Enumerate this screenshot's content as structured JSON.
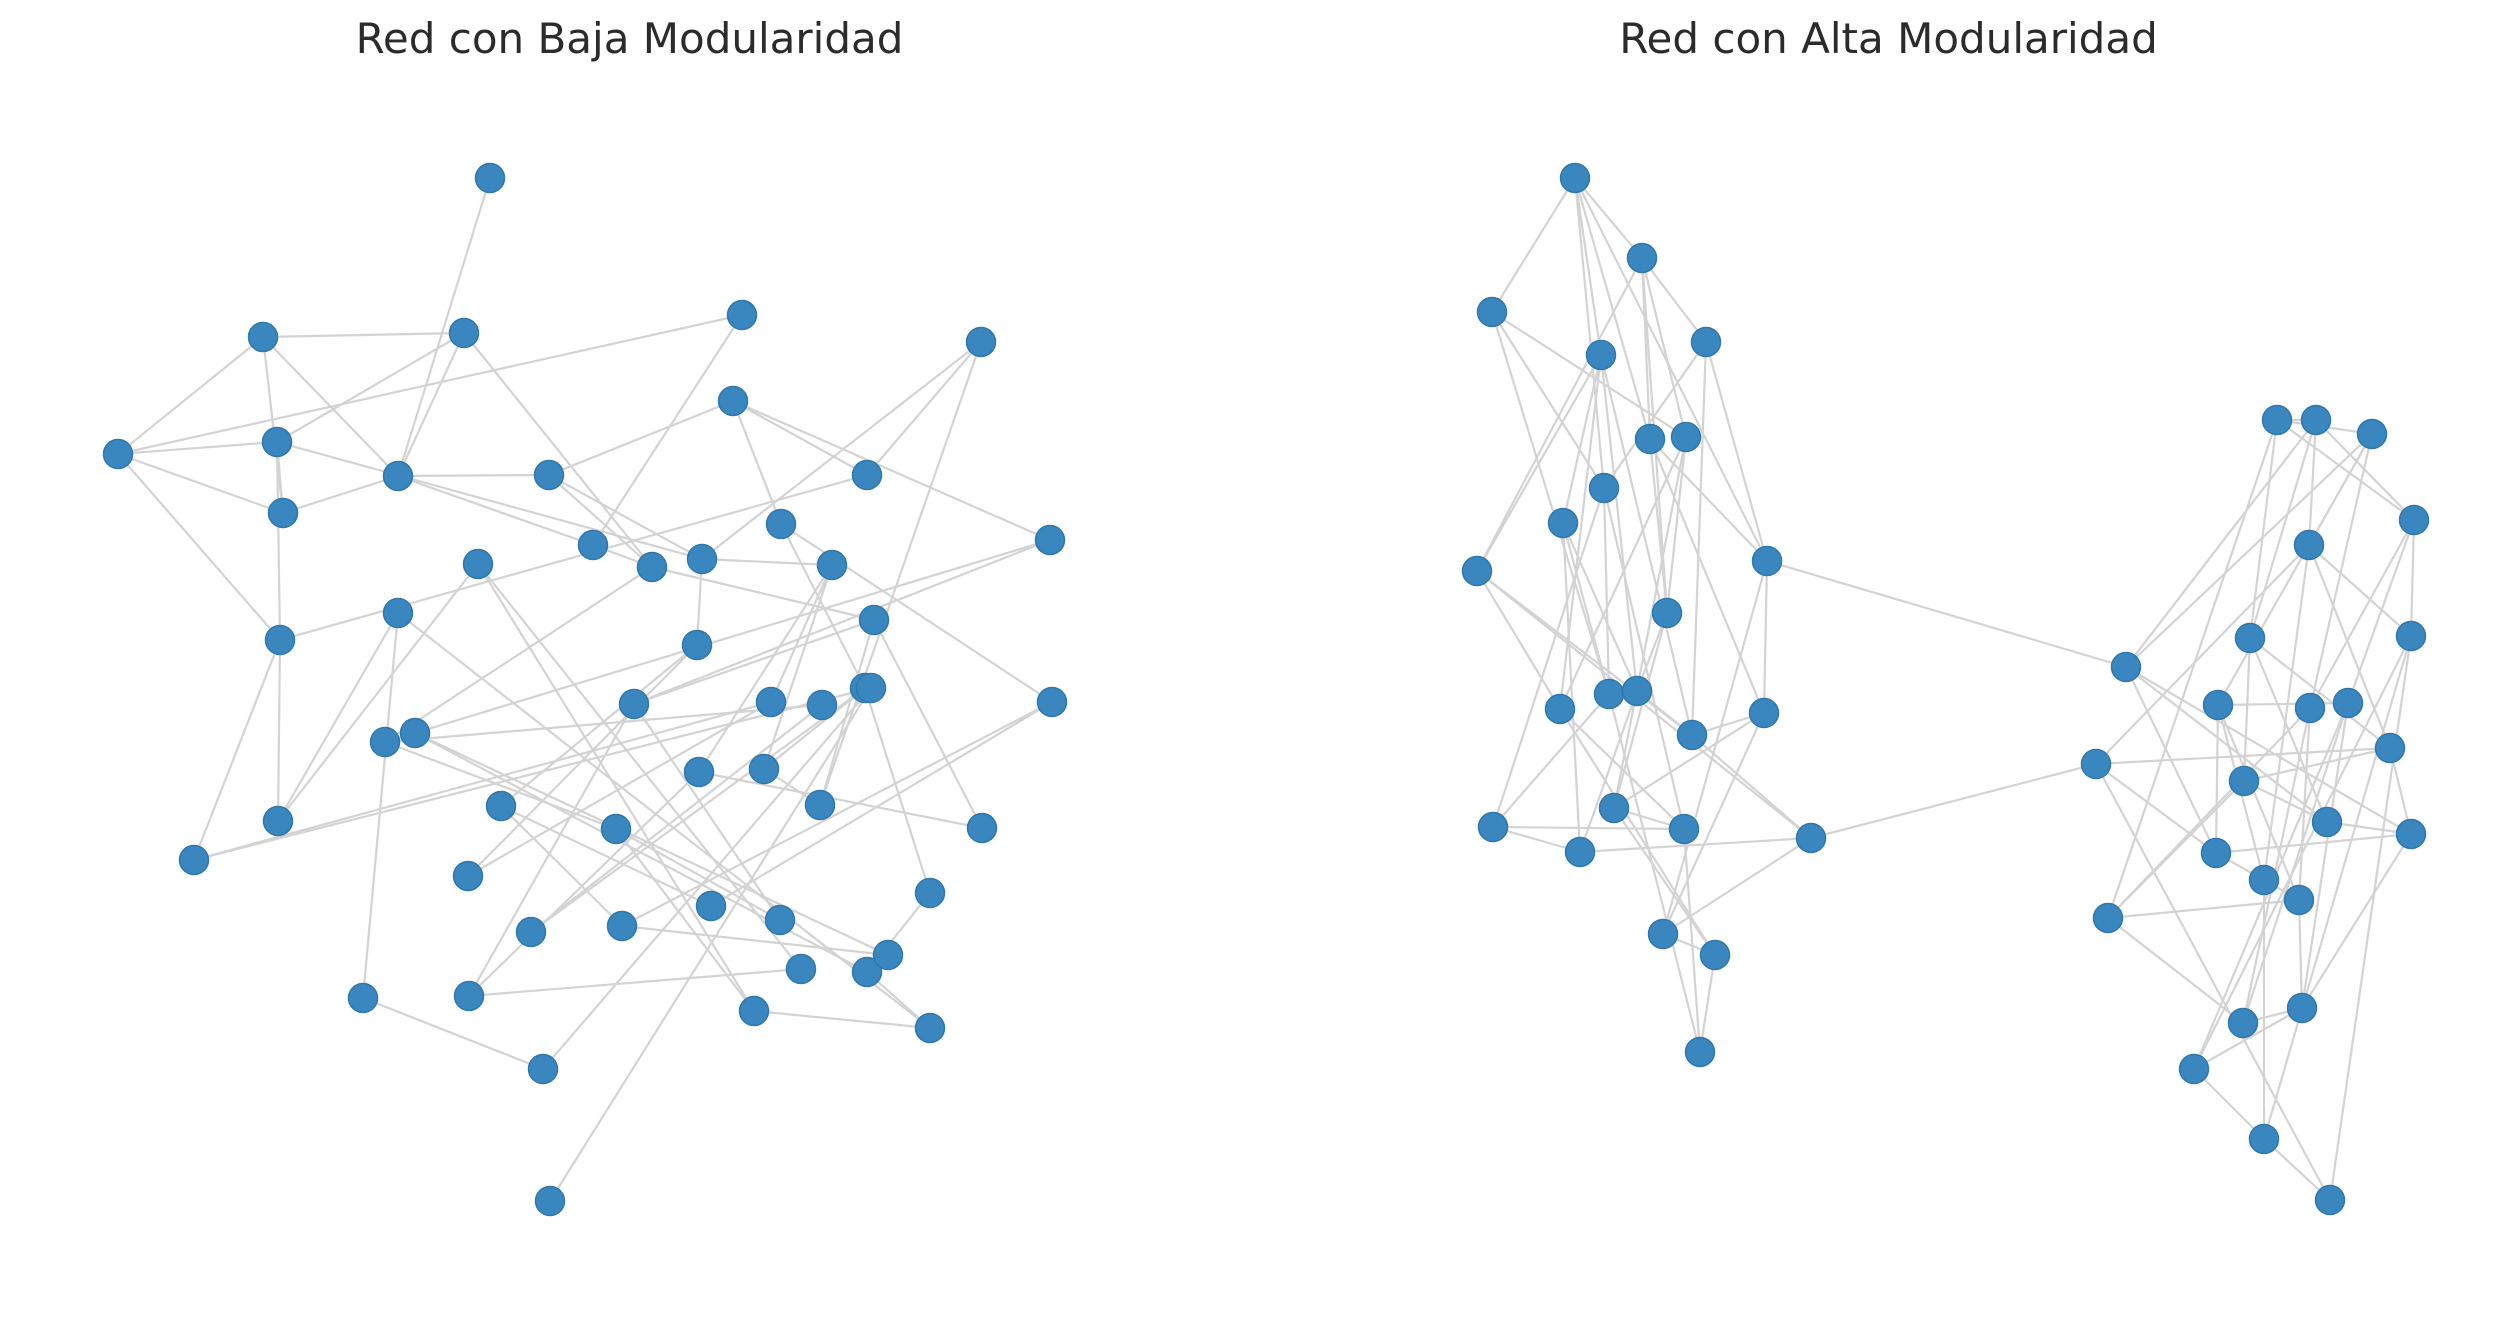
{
  "figure": {
    "left_panel": {
      "title": "Red con Baja Modularidad"
    },
    "right_panel": {
      "title": "Red con Alta Modularidad"
    }
  },
  "colors": {
    "node": "#3a87c0",
    "edge": "#d3d3d3",
    "title": "#2b2b2b",
    "background": "#ffffff"
  }
}
